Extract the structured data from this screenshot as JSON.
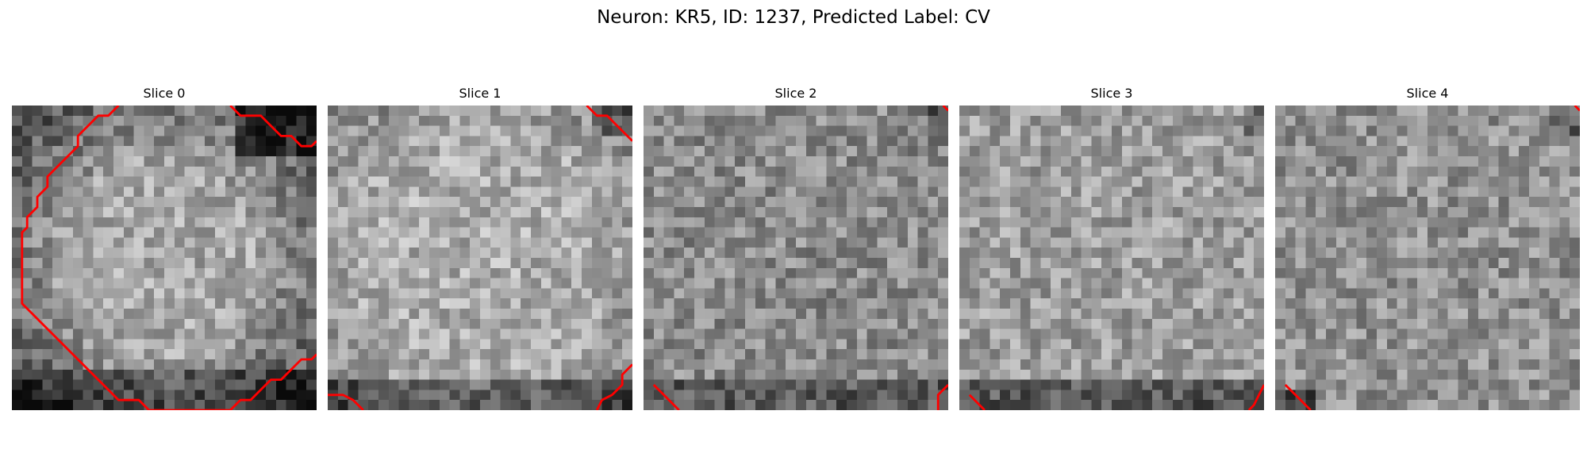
{
  "figure": {
    "title": "Neuron: KR5, ID: 1237, Predicted Label: CV"
  },
  "colors": {
    "contour": "#ff0000",
    "colormap": "grayscale"
  },
  "panels": [
    {
      "title": "Slice 0",
      "contours": [
        [
          [
            10,
            -0.5
          ],
          [
            9,
            0.5
          ],
          [
            8,
            0.5
          ],
          [
            7,
            1.5
          ],
          [
            6,
            2.5
          ],
          [
            6,
            3.5
          ],
          [
            5,
            4.5
          ],
          [
            4,
            5.5
          ],
          [
            3,
            6.5
          ],
          [
            3,
            7.5
          ],
          [
            2,
            8.5
          ],
          [
            2,
            9.5
          ],
          [
            1,
            10.5
          ],
          [
            1,
            11.5
          ],
          [
            0.5,
            12
          ],
          [
            0.5,
            15
          ],
          [
            0.5,
            17
          ],
          [
            0.5,
            19
          ],
          [
            1.5,
            20
          ],
          [
            2.5,
            21
          ],
          [
            4,
            22.5
          ],
          [
            6,
            24.5
          ],
          [
            8,
            26.5
          ],
          [
            9,
            27.5
          ],
          [
            10,
            28.5
          ],
          [
            11,
            28.5
          ],
          [
            12,
            28.5
          ],
          [
            13,
            29.5
          ],
          [
            15,
            29.5
          ],
          [
            17,
            29.5
          ],
          [
            19,
            29.5
          ],
          [
            21,
            29.5
          ],
          [
            22,
            28.5
          ],
          [
            23,
            28.5
          ],
          [
            24,
            27.5
          ],
          [
            25,
            26.5
          ],
          [
            26,
            26.5
          ],
          [
            27,
            25.5
          ],
          [
            28,
            24.5
          ],
          [
            29,
            24.5
          ],
          [
            29.5,
            24
          ]
        ],
        [
          [
            21,
            -0.5
          ],
          [
            22,
            0.5
          ],
          [
            23,
            0.5
          ],
          [
            24,
            0.5
          ],
          [
            25,
            1.5
          ],
          [
            26,
            2.5
          ],
          [
            27,
            2.5
          ],
          [
            28,
            3.5
          ],
          [
            29,
            3.5
          ],
          [
            29.5,
            3
          ]
        ]
      ]
    },
    {
      "title": "Slice 1",
      "contours": [
        [
          [
            25,
            -0.5
          ],
          [
            26,
            0.5
          ],
          [
            27,
            0.5
          ],
          [
            28,
            1.5
          ],
          [
            29,
            2.5
          ],
          [
            29.5,
            3
          ]
        ],
        [
          [
            29.5,
            25
          ],
          [
            29,
            25.5
          ],
          [
            28.5,
            26
          ],
          [
            28.5,
            27
          ],
          [
            27.5,
            28
          ],
          [
            26.5,
            28.5
          ],
          [
            26,
            29.5
          ]
        ],
        [
          [
            -0.5,
            28
          ],
          [
            1,
            28
          ],
          [
            2,
            28.5
          ],
          [
            3,
            29.5
          ]
        ]
      ]
    },
    {
      "title": "Slice 2",
      "contours": [
        [
          [
            29,
            -0.5
          ],
          [
            29.5,
            0
          ]
        ],
        [
          [
            0.5,
            27
          ],
          [
            1.5,
            28
          ],
          [
            2.5,
            29
          ],
          [
            3,
            29.5
          ]
        ],
        [
          [
            29.5,
            27
          ],
          [
            28.5,
            28
          ],
          [
            28.5,
            29.5
          ]
        ]
      ]
    },
    {
      "title": "Slice 3",
      "contours": [
        [
          [
            0.5,
            28
          ],
          [
            1.5,
            29
          ],
          [
            2,
            29.5
          ]
        ],
        [
          [
            29.5,
            27
          ],
          [
            29,
            28
          ],
          [
            28.5,
            29
          ],
          [
            28,
            29.5
          ]
        ]
      ]
    },
    {
      "title": "Slice 4",
      "contours": [
        [
          [
            29,
            -0.5
          ],
          [
            29.5,
            0
          ]
        ],
        [
          [
            0.5,
            27
          ],
          [
            1.5,
            28
          ],
          [
            2.5,
            29
          ],
          [
            3,
            29.5
          ]
        ]
      ]
    }
  ]
}
